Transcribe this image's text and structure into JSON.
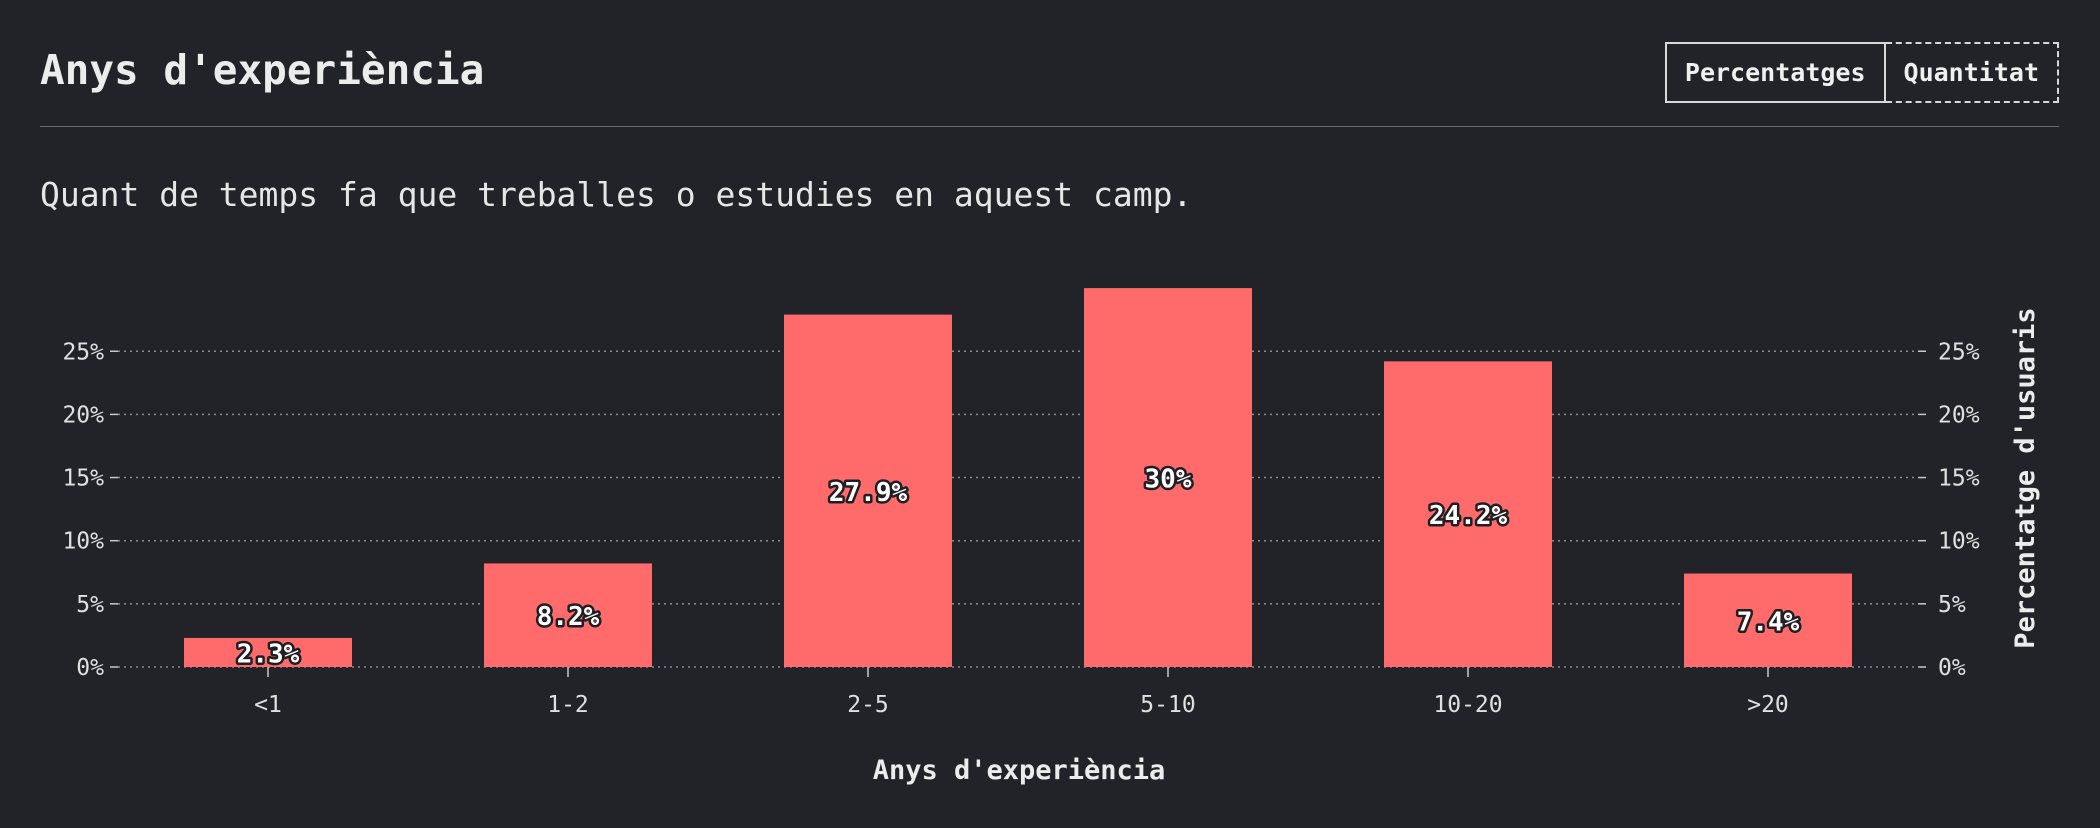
{
  "header": {
    "title": "Anys d'experiència",
    "toggle": {
      "percent_label": "Percentatges",
      "count_label": "Quantitat"
    }
  },
  "subtitle": "Quant de temps fa que treballes o estudies en aquest camp.",
  "colors": {
    "bar": "#ff6b6b",
    "background": "#222328"
  },
  "chart_data": {
    "type": "bar",
    "categories": [
      "<1",
      "1-2",
      "2-5",
      "5-10",
      "10-20",
      ">20"
    ],
    "values": [
      2.3,
      8.2,
      27.9,
      30,
      24.2,
      7.4
    ],
    "data_labels": [
      "2.3%",
      "8.2%",
      "27.9%",
      "30%",
      "24.2%",
      "7.4%"
    ],
    "xlabel": "Anys d'experiència",
    "ylabel": "Percentatge d'usuaris",
    "y_ticks": [
      0,
      5,
      10,
      15,
      20,
      25
    ],
    "y_tick_labels": [
      "0%",
      "5%",
      "10%",
      "15%",
      "20%",
      "25%"
    ],
    "ylim": [
      0,
      30
    ],
    "grid": true
  }
}
